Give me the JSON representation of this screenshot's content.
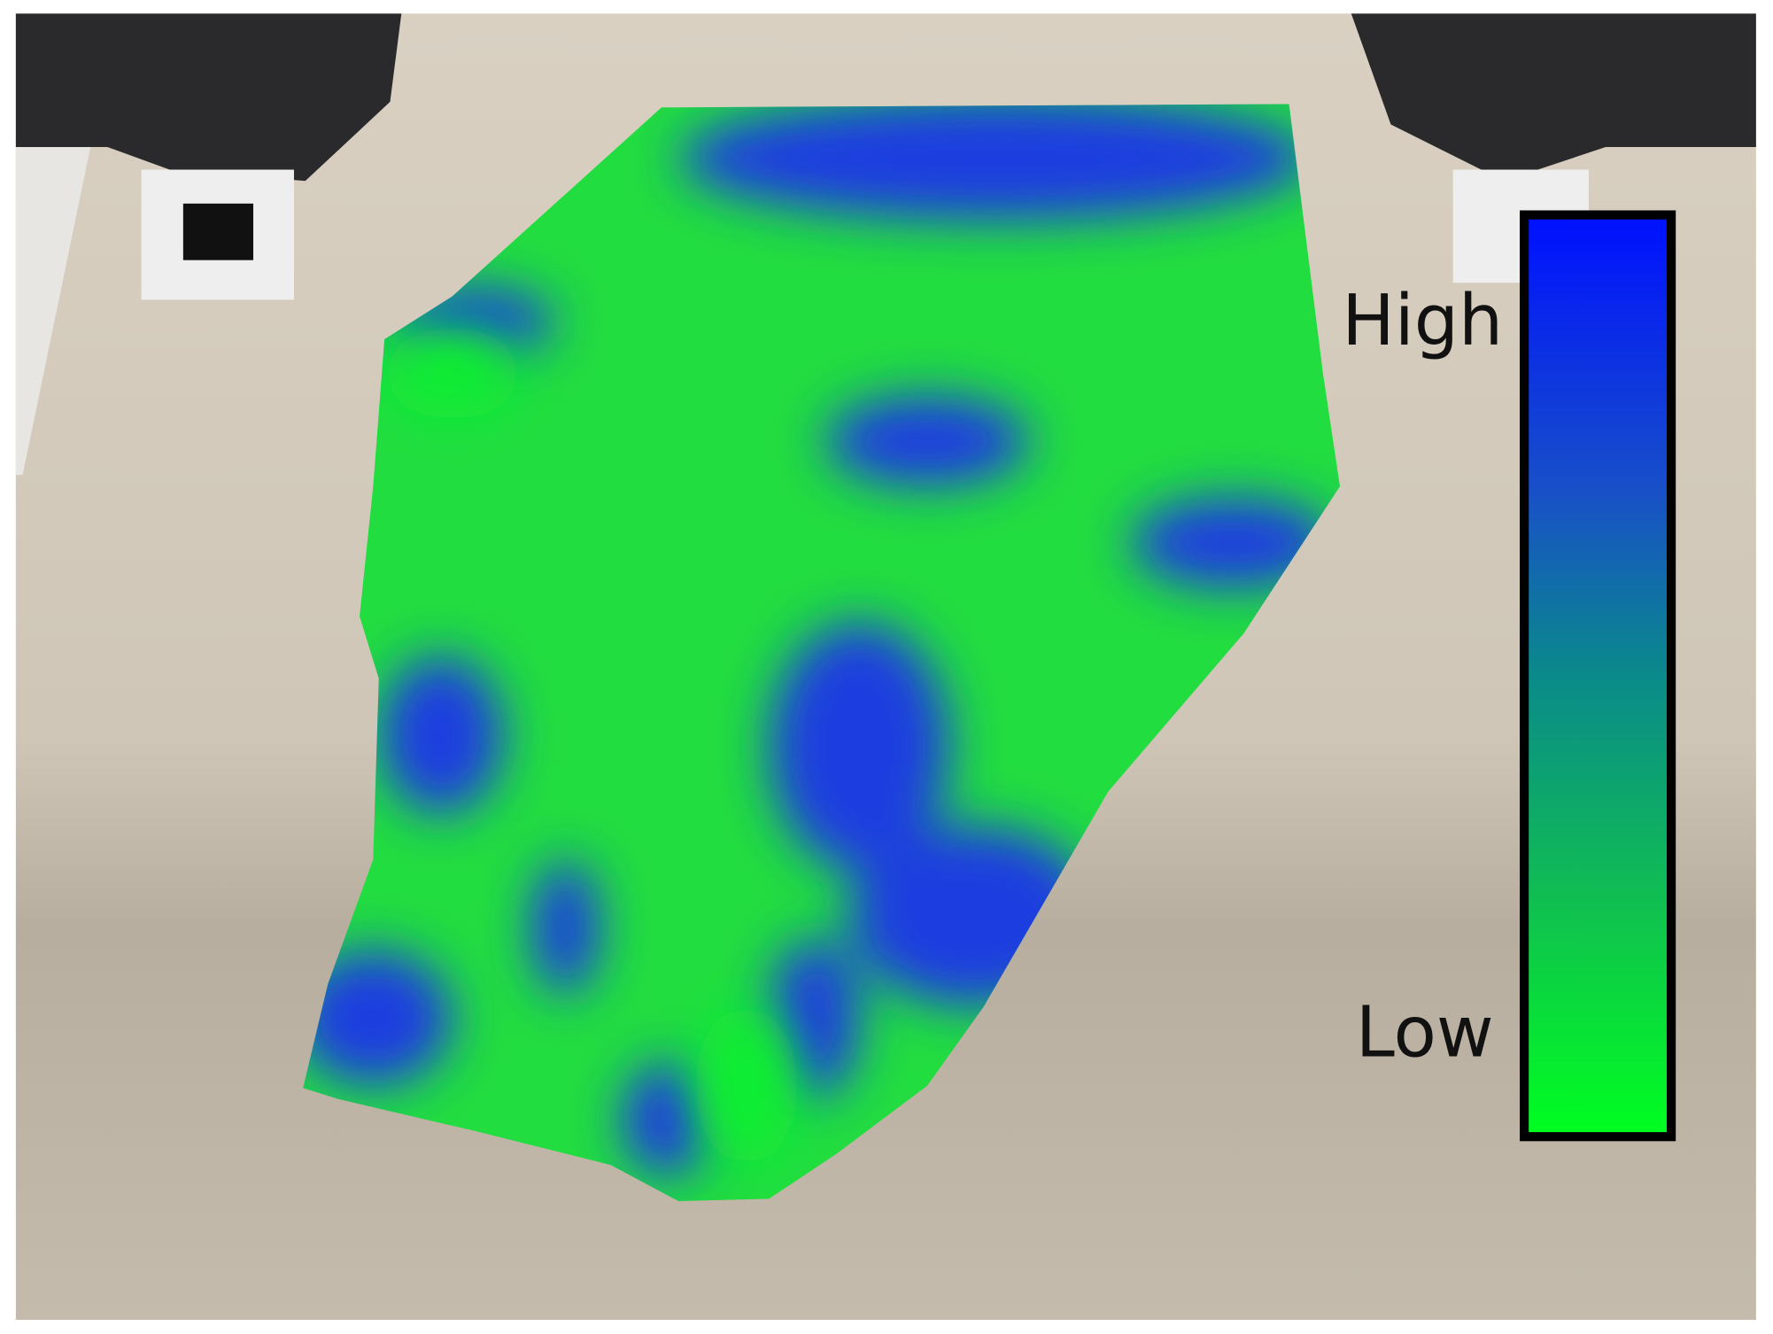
{
  "legend": {
    "high_label": "High",
    "low_label": "Low"
  }
}
